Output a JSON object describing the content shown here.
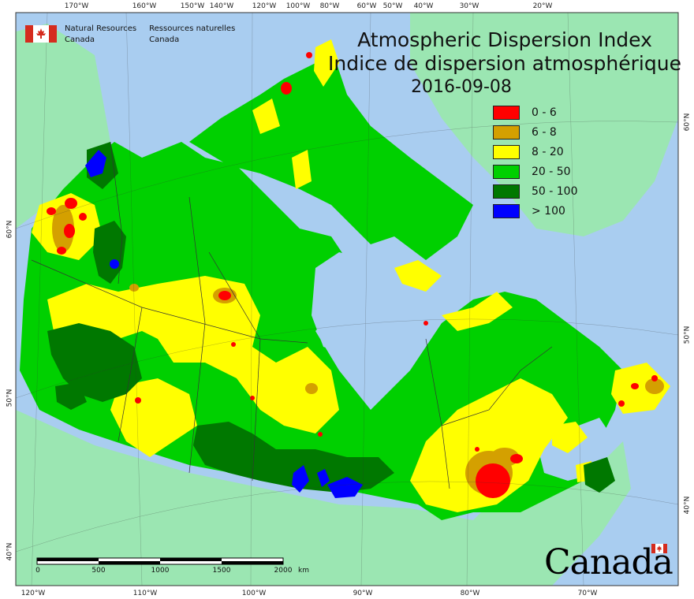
{
  "map": {
    "title_en": "Atmospheric Dispersion Index",
    "title_fr": "Indice de dispersion atmosphérique",
    "date": "2016-09-08",
    "agency_en": [
      "Natural Resources",
      "Canada"
    ],
    "agency_fr": [
      "Ressources naturelles",
      "Canada"
    ],
    "wordmark": "Canada",
    "legend": [
      {
        "label": "0 - 6",
        "color": "#ff0000"
      },
      {
        "label": "6 - 8",
        "color": "#d4a000"
      },
      {
        "label": "8 - 20",
        "color": "#ffff00"
      },
      {
        "label": "20 - 50",
        "color": "#00d000"
      },
      {
        "label": "50 - 100",
        "color": "#007800"
      },
      {
        "label": "> 100",
        "color": "#0000ff"
      }
    ],
    "colors": {
      "water": "#a9cdf0",
      "land_outside": "#9be6b2",
      "border": "#333333"
    },
    "top_ticks": [
      "170°W",
      "160°W",
      "150°W",
      "140°W",
      "120°W",
      "100°W",
      "80°W",
      "60°W",
      "50°W",
      "40°W",
      "30°W",
      "20°W"
    ],
    "bottom_ticks": [
      "120°W",
      "110°W",
      "100°W",
      "90°W",
      "80°W",
      "70°W"
    ],
    "left_ticks": [
      "60°N",
      "50°N",
      "40°N"
    ],
    "right_ticks": [
      "60°N",
      "50°N",
      "40°N"
    ],
    "scale": {
      "labels": [
        "0",
        "500",
        "1000",
        "1500",
        "2000"
      ],
      "unit": "km"
    }
  }
}
